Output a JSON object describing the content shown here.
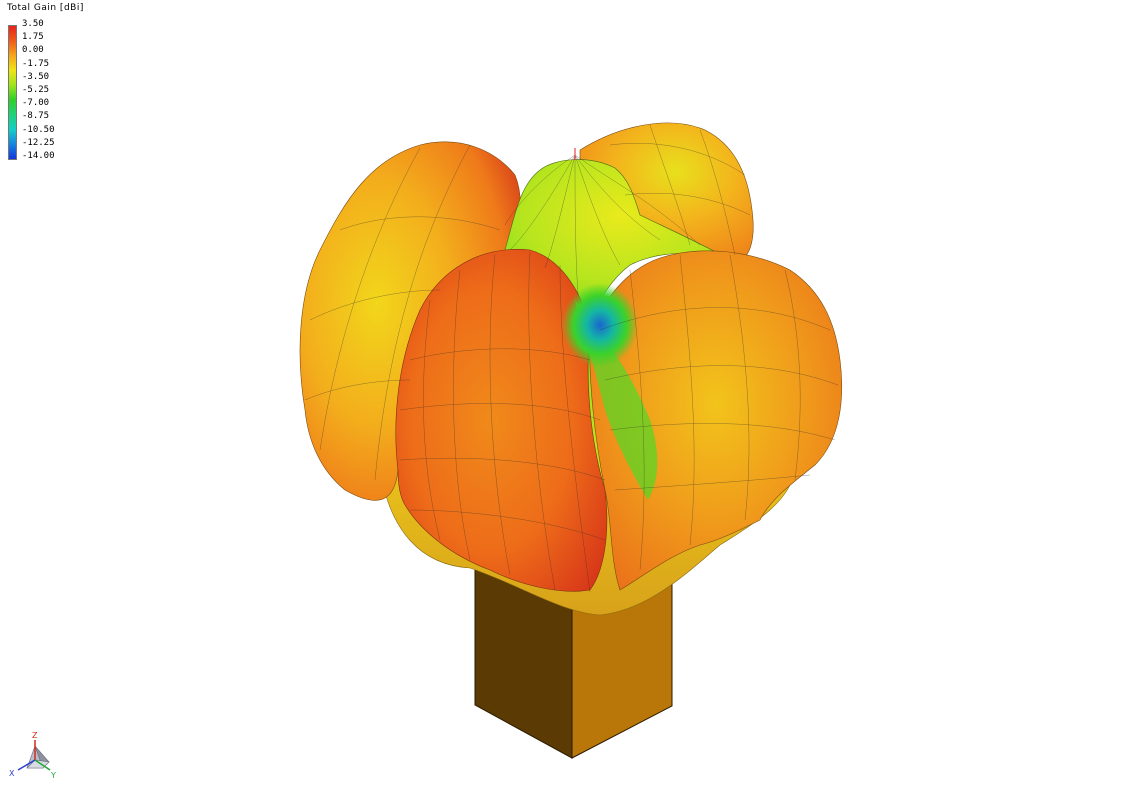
{
  "legend": {
    "title": "Total Gain [dBi]",
    "ticks": [
      "3.50",
      "1.75",
      "0.00",
      "-1.75",
      "-3.50",
      "-5.25",
      "-7.00",
      "-8.75",
      "-10.50",
      "-12.25",
      "-14.00"
    ],
    "colors": [
      "#e8231a",
      "#f05a17",
      "#f6a51b",
      "#f1e414",
      "#9ee51d",
      "#2fcf2a",
      "#1ed47a",
      "#14cfc8",
      "#1784e0",
      "#1136e0"
    ]
  },
  "triad": {
    "labels": {
      "z": "Z",
      "x": "X",
      "y": "Y"
    },
    "colors": {
      "z": "#d62a1e",
      "x": "#2a3fd6",
      "y": "#22a632"
    }
  },
  "scene": {
    "pattern_colors": {
      "high": "#e0401a",
      "orange": "#f08a1d",
      "yellow": "#f2e21c",
      "green": "#3cd22a",
      "teal": "#14b6a4",
      "blue": "#1b66d0"
    },
    "post_colors": {
      "front": "#b87708",
      "side": "#5c3a03",
      "edge": "#2b1a00"
    },
    "icons": [
      "radiation-pattern-icon",
      "feed-post-icon",
      "axis-triad-icon"
    ]
  }
}
